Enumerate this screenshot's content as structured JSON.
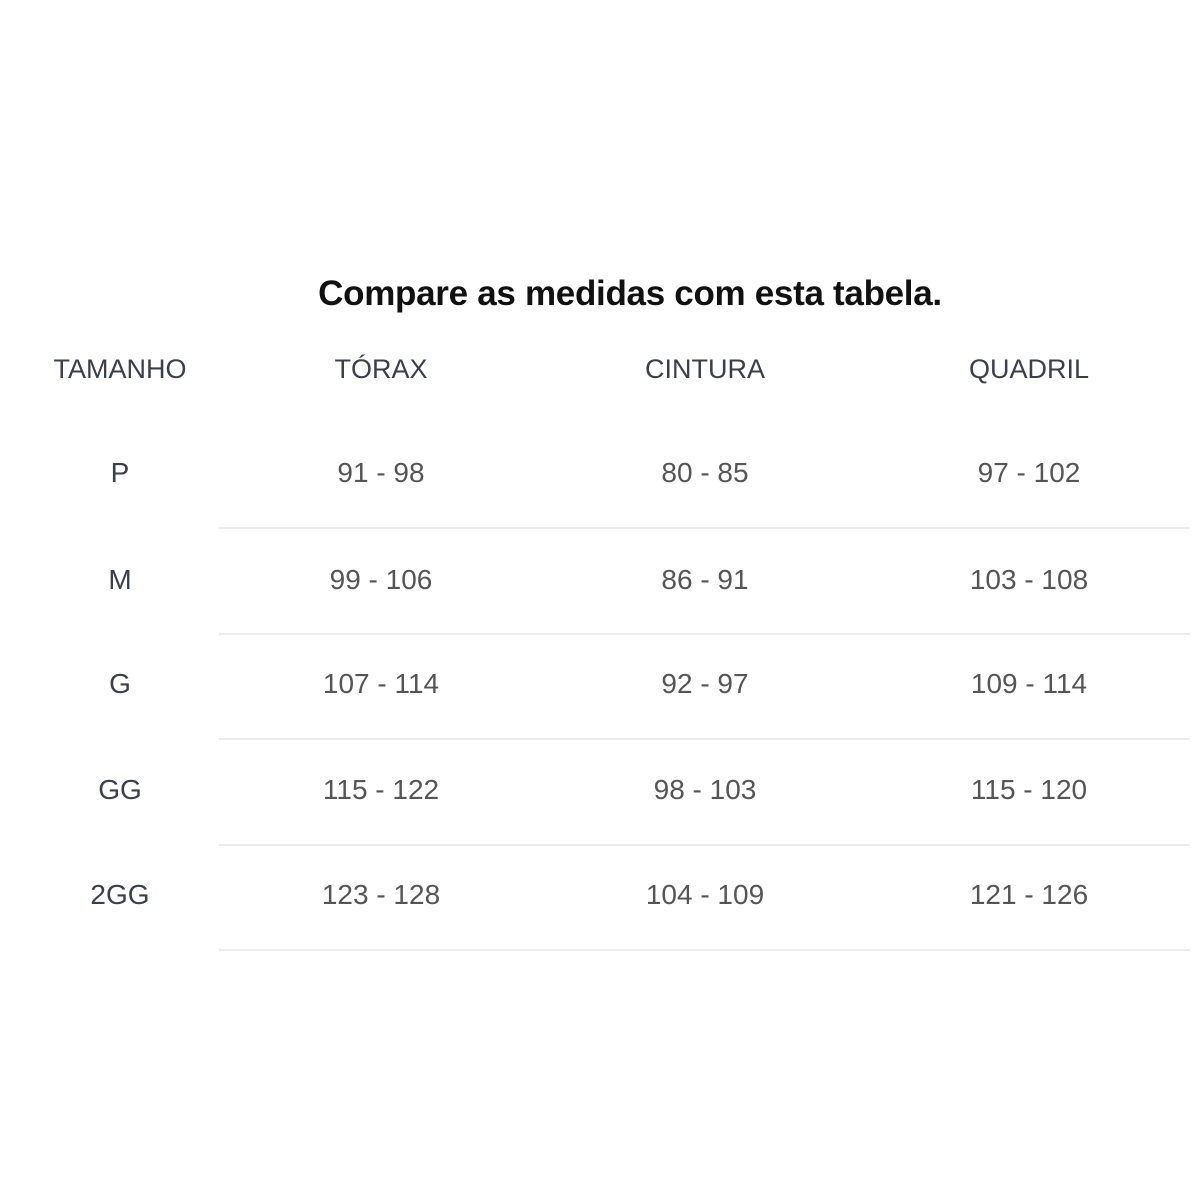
{
  "title": "Compare as medidas com esta tabela.",
  "table": {
    "headers": [
      "TAMANHO",
      "TÓRAX",
      "CINTURA",
      "QUADRIL"
    ],
    "rows": [
      [
        "P",
        "91 - 98",
        "80 - 85",
        "97 - 102"
      ],
      [
        "M",
        "99 - 106",
        "86 - 91",
        "103 - 108"
      ],
      [
        "G",
        "107 - 114",
        "92 - 97",
        "109 - 114"
      ],
      [
        "GG",
        "115 - 122",
        "98 - 103",
        "115 - 120"
      ],
      [
        "2GG",
        "123 - 128",
        "104 - 109",
        "121 - 126"
      ]
    ]
  }
}
